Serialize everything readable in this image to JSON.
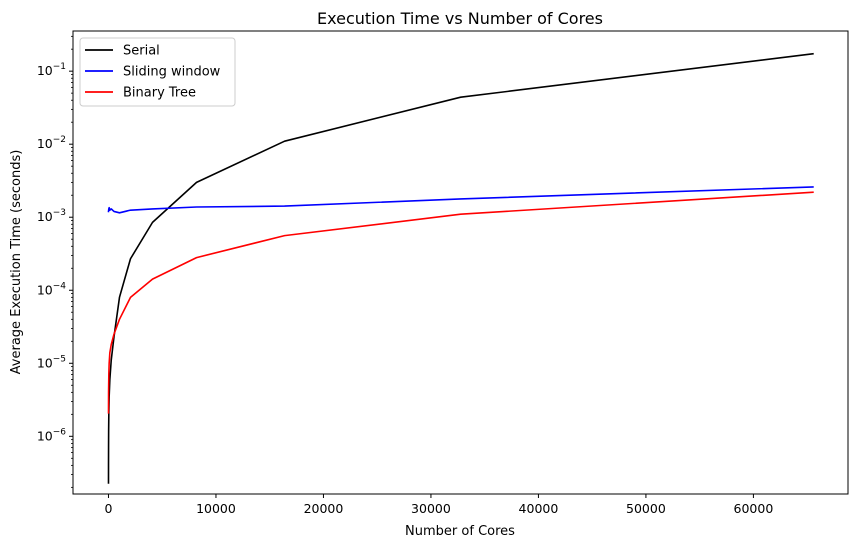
{
  "chart_data": {
    "type": "line",
    "title": "Execution Time vs Number of Cores",
    "xlabel": "Number of Cores",
    "ylabel": "Average Execution Time (seconds)",
    "xscale": "linear",
    "yscale": "log",
    "xlim": [
      -3300,
      68800
    ],
    "ylim_log10": [
      -6.79,
      -0.45
    ],
    "xticks": [
      {
        "value": 0,
        "label": "0"
      },
      {
        "value": 10000,
        "label": "10000"
      },
      {
        "value": 20000,
        "label": "20000"
      },
      {
        "value": 30000,
        "label": "30000"
      },
      {
        "value": 40000,
        "label": "40000"
      },
      {
        "value": 50000,
        "label": "50000"
      },
      {
        "value": 60000,
        "label": "60000"
      }
    ],
    "yticks": [
      {
        "exp": -6,
        "base": "10",
        "sup": "−6"
      },
      {
        "exp": -5,
        "base": "10",
        "sup": "−5"
      },
      {
        "exp": -4,
        "base": "10",
        "sup": "−4"
      },
      {
        "exp": -3,
        "base": "10",
        "sup": "−3"
      },
      {
        "exp": -2,
        "base": "10",
        "sup": "−2"
      },
      {
        "exp": -1,
        "base": "10",
        "sup": "−1"
      }
    ],
    "grid": false,
    "legend_position": "top-left",
    "series": [
      {
        "name": "Serial",
        "color": "#000000",
        "x": [
          2,
          4,
          8,
          16,
          32,
          64,
          128,
          256,
          512,
          1024,
          2048,
          4096,
          8192,
          16384,
          32768,
          65536
        ],
        "y": [
          2.3e-07,
          4e-07,
          7e-07,
          1.2e-06,
          2e-06,
          3.5e-06,
          6e-06,
          1.1e-05,
          2.3e-05,
          8e-05,
          0.00027,
          0.00085,
          0.003,
          0.011,
          0.044,
          0.173
        ]
      },
      {
        "name": "Sliding window",
        "color": "#0000ff",
        "x": [
          2,
          32,
          64,
          128,
          256,
          512,
          1024,
          2048,
          4096,
          8192,
          16384,
          32768,
          65536
        ],
        "y": [
          0.0012,
          0.0013,
          0.00135,
          0.00125,
          0.0013,
          0.0012,
          0.00115,
          0.00125,
          0.0013,
          0.00138,
          0.00142,
          0.00178,
          0.0026
        ]
      },
      {
        "name": "Binary Tree",
        "color": "#ff0000",
        "x": [
          2,
          8,
          32,
          64,
          128,
          256,
          512,
          1024,
          2048,
          4096,
          8192,
          16384,
          32768,
          65536
        ],
        "y": [
          2.1e-06,
          4e-06,
          7e-06,
          1e-05,
          1.4e-05,
          1.8e-05,
          2.5e-05,
          4e-05,
          8e-05,
          0.000142,
          0.00028,
          0.00056,
          0.0011,
          0.0022
        ]
      }
    ]
  }
}
